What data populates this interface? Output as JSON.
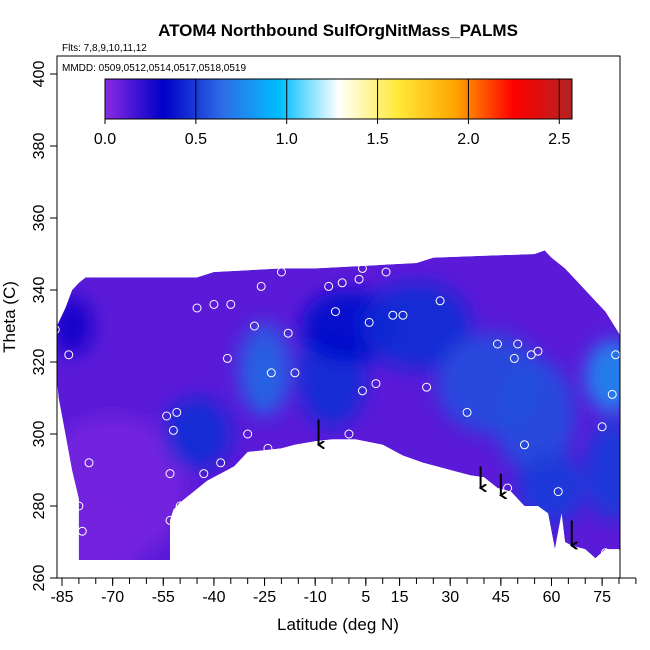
{
  "chart_data": {
    "type": "heatmap",
    "title": "ATOM4 Northbound SulfOrgNitMass_PALMS",
    "flights_label": "Flts: 7,8,9,10,11,12",
    "dates_label": "MMDD: 0509,0512,0514,0517,0518,0519",
    "xlabel": "Latitude (deg N)",
    "ylabel": "Theta (C)",
    "xlim": [
      -87,
      86
    ],
    "ylim": [
      260,
      405
    ],
    "xticks": [
      -85,
      -70,
      -55,
      -40,
      -25,
      -10,
      5,
      15,
      30,
      45,
      60,
      75
    ],
    "xtick_labels": [
      "-85",
      "-70",
      "-55",
      "-40",
      "-25",
      "-10",
      "5",
      "15",
      "30",
      "45",
      "60",
      "75"
    ],
    "yticks": [
      260,
      280,
      300,
      320,
      340,
      360,
      380,
      400
    ],
    "ytick_labels": [
      "260",
      "280",
      "300",
      "320",
      "340",
      "360",
      "380",
      "400"
    ],
    "colorbar": {
      "min": 0,
      "max": 2.57,
      "ticks": [
        0.0,
        0.5,
        1.0,
        1.5,
        2.0,
        2.5
      ],
      "tick_labels": [
        "0.0",
        "0.5",
        "1.0",
        "1.5",
        "2.0",
        "2.5"
      ],
      "colors": [
        "#8a2be2",
        "#0000c8",
        "#2e6be6",
        "#00bfff",
        "#ffffff",
        "#ffeb3b",
        "#ffa500",
        "#ff0000",
        "#b22222"
      ]
    },
    "field": {
      "top_boundary": [
        [
          -87,
          329
        ],
        [
          -86,
          331
        ],
        [
          -84,
          335
        ],
        [
          -82,
          340
        ],
        [
          -80,
          342
        ],
        [
          -78,
          343.5
        ],
        [
          -70,
          343.5
        ],
        [
          -60,
          343.5
        ],
        [
          -55,
          343.5
        ],
        [
          -45,
          343.5
        ],
        [
          -40,
          345
        ],
        [
          -30,
          345.5
        ],
        [
          -20,
          346
        ],
        [
          -10,
          346
        ],
        [
          0,
          346.5
        ],
        [
          10,
          347
        ],
        [
          20,
          347.5
        ],
        [
          25,
          349
        ],
        [
          40,
          349.5
        ],
        [
          55,
          350
        ],
        [
          58,
          351
        ],
        [
          60,
          349
        ],
        [
          64,
          346
        ],
        [
          68,
          342
        ],
        [
          72,
          338
        ],
        [
          76,
          334
        ],
        [
          80,
          328
        ],
        [
          83,
          321
        ],
        [
          85,
          315
        ],
        [
          86,
          309
        ]
      ],
      "bottom_boundary": [
        [
          86,
          265
        ],
        [
          82,
          264
        ],
        [
          80,
          268
        ],
        [
          76,
          268
        ],
        [
          73,
          265.5
        ],
        [
          70,
          268
        ],
        [
          66,
          269
        ],
        [
          64,
          270
        ],
        [
          63,
          278
        ],
        [
          61,
          268
        ],
        [
          59,
          278
        ],
        [
          56,
          280
        ],
        [
          52,
          280
        ],
        [
          48,
          284
        ],
        [
          44,
          285
        ],
        [
          40,
          288
        ],
        [
          36,
          288.5
        ],
        [
          30,
          290
        ],
        [
          22,
          292
        ],
        [
          16,
          294
        ],
        [
          10,
          297
        ],
        [
          2,
          298.5
        ],
        [
          -5,
          298.5
        ],
        [
          -10,
          298
        ],
        [
          -16,
          297
        ],
        [
          -20,
          296
        ],
        [
          -25,
          295.5
        ],
        [
          -30,
          295
        ],
        [
          -34,
          291
        ],
        [
          -38,
          289
        ],
        [
          -42,
          287
        ],
        [
          -46,
          284
        ],
        [
          -50,
          281
        ],
        [
          -52,
          279
        ],
        [
          -53,
          276
        ],
        [
          -53,
          265
        ],
        [
          -80,
          265
        ],
        [
          -80,
          269
        ],
        [
          -80,
          282
        ],
        [
          -82,
          290
        ],
        [
          -84,
          300
        ],
        [
          -86,
          310
        ],
        [
          -87,
          320
        ]
      ],
      "background": "#5a1ad8",
      "regions": [
        {
          "lat": -70,
          "theta": 285,
          "value": 0.05,
          "r": [
            22,
            20
          ]
        },
        {
          "lat": -75,
          "theta": 270,
          "value": 0.05,
          "r": [
            14,
            12
          ]
        },
        {
          "lat": -25,
          "theta": 315,
          "value": 0.85,
          "r": [
            5,
            9
          ]
        },
        {
          "lat": -25,
          "theta": 318,
          "value": 0.6,
          "r": [
            8,
            13
          ]
        },
        {
          "lat": -5,
          "theta": 316,
          "value": 0.45,
          "r": [
            10,
            14
          ]
        },
        {
          "lat": 0,
          "theta": 330,
          "value": 0.35,
          "r": [
            14,
            10
          ]
        },
        {
          "lat": 20,
          "theta": 330,
          "value": 0.45,
          "r": [
            16,
            12
          ]
        },
        {
          "lat": 42,
          "theta": 314,
          "value": 0.55,
          "r": [
            16,
            14
          ]
        },
        {
          "lat": 55,
          "theta": 305,
          "value": 0.55,
          "r": [
            12,
            16
          ]
        },
        {
          "lat": 78,
          "theta": 316,
          "value": 0.75,
          "r": [
            8,
            10
          ]
        },
        {
          "lat": 60,
          "theta": 285,
          "value": 0.5,
          "r": [
            10,
            10
          ]
        },
        {
          "lat": 78,
          "theta": 290,
          "value": 0.5,
          "r": [
            8,
            14
          ]
        },
        {
          "lat": -45,
          "theta": 300,
          "value": 0.45,
          "r": [
            10,
            10
          ]
        },
        {
          "lat": -82,
          "theta": 330,
          "value": 0.3,
          "r": [
            6,
            8
          ]
        }
      ]
    },
    "points": [
      {
        "x": -87,
        "y": 329
      },
      {
        "x": -83,
        "y": 322
      },
      {
        "x": -81,
        "y": 343
      },
      {
        "x": -80,
        "y": 280
      },
      {
        "x": -79,
        "y": 273
      },
      {
        "x": -77,
        "y": 292
      },
      {
        "x": -54,
        "y": 305
      },
      {
        "x": -53,
        "y": 289
      },
      {
        "x": -53,
        "y": 276
      },
      {
        "x": -52,
        "y": 301
      },
      {
        "x": -51,
        "y": 306
      },
      {
        "x": -50,
        "y": 280
      },
      {
        "x": -45,
        "y": 335
      },
      {
        "x": -43,
        "y": 289
      },
      {
        "x": -40,
        "y": 336
      },
      {
        "x": -38,
        "y": 292
      },
      {
        "x": -36,
        "y": 321
      },
      {
        "x": -35,
        "y": 336
      },
      {
        "x": -30,
        "y": 300
      },
      {
        "x": -28,
        "y": 330
      },
      {
        "x": -26,
        "y": 341
      },
      {
        "x": -24,
        "y": 296
      },
      {
        "x": -23,
        "y": 317
      },
      {
        "x": -20,
        "y": 345
      },
      {
        "x": -18,
        "y": 328
      },
      {
        "x": -16,
        "y": 317
      },
      {
        "x": -6,
        "y": 341
      },
      {
        "x": -4,
        "y": 334
      },
      {
        "x": -2,
        "y": 342
      },
      {
        "x": 0,
        "y": 300
      },
      {
        "x": 3,
        "y": 343
      },
      {
        "x": 4,
        "y": 312
      },
      {
        "x": 4,
        "y": 346
      },
      {
        "x": 6,
        "y": 331
      },
      {
        "x": 8,
        "y": 314
      },
      {
        "x": 11,
        "y": 345
      },
      {
        "x": 13,
        "y": 333
      },
      {
        "x": 16,
        "y": 333
      },
      {
        "x": 23,
        "y": 313
      },
      {
        "x": 27,
        "y": 337
      },
      {
        "x": 35,
        "y": 306
      },
      {
        "x": 44,
        "y": 325
      },
      {
        "x": 47,
        "y": 285
      },
      {
        "x": 49,
        "y": 321
      },
      {
        "x": 50,
        "y": 325
      },
      {
        "x": 52,
        "y": 297
      },
      {
        "x": 54,
        "y": 322
      },
      {
        "x": 56,
        "y": 323
      },
      {
        "x": 62,
        "y": 284
      },
      {
        "x": 68,
        "y": 266
      },
      {
        "x": 75,
        "y": 302
      },
      {
        "x": 76,
        "y": 267
      },
      {
        "x": 78,
        "y": 311
      },
      {
        "x": 79,
        "y": 322
      },
      {
        "x": 81,
        "y": 264
      },
      {
        "x": 82,
        "y": 315
      },
      {
        "x": 83,
        "y": 303
      }
    ],
    "arrows": [
      {
        "x": -9,
        "theta_top": 304,
        "theta_bottom": 297
      },
      {
        "x": 39,
        "theta_top": 291,
        "theta_bottom": 285
      },
      {
        "x": 45,
        "theta_top": 289,
        "theta_bottom": 283
      },
      {
        "x": 66,
        "theta_top": 276,
        "theta_bottom": 269
      }
    ]
  }
}
